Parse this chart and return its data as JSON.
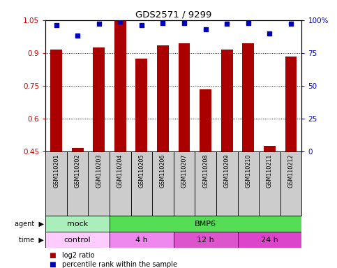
{
  "title": "GDS2571 / 9299",
  "samples": [
    "GSM110201",
    "GSM110202",
    "GSM110203",
    "GSM110204",
    "GSM110205",
    "GSM110206",
    "GSM110207",
    "GSM110208",
    "GSM110209",
    "GSM110210",
    "GSM110211",
    "GSM110212"
  ],
  "log2_ratio": [
    0.915,
    0.465,
    0.925,
    1.045,
    0.875,
    0.935,
    0.945,
    0.735,
    0.915,
    0.945,
    0.475,
    0.885
  ],
  "percentile_rank": [
    96,
    88,
    97,
    99,
    96,
    98,
    98,
    93,
    97,
    98,
    90,
    97
  ],
  "bar_bottom": 0.45,
  "ylim_left": [
    0.45,
    1.05
  ],
  "ylim_right": [
    0,
    100
  ],
  "yticks_left": [
    0.45,
    0.6,
    0.75,
    0.9,
    1.05
  ],
  "yticks_right": [
    0,
    25,
    50,
    75,
    100
  ],
  "ytick_labels_left": [
    "0.45",
    "0.6",
    "0.75",
    "0.9",
    "1.05"
  ],
  "ytick_labels_right": [
    "0",
    "25",
    "50",
    "75",
    "100%"
  ],
  "bar_color": "#aa0000",
  "dot_color": "#0000bb",
  "agent_labels": [
    {
      "text": "mock",
      "start": 0,
      "end": 3,
      "color": "#aaeebb"
    },
    {
      "text": "BMP6",
      "start": 3,
      "end": 12,
      "color": "#55dd55"
    }
  ],
  "time_labels": [
    {
      "text": "control",
      "start": 0,
      "end": 3,
      "color": "#ffccff"
    },
    {
      "text": "4 h",
      "start": 3,
      "end": 6,
      "color": "#ee88ee"
    },
    {
      "text": "12 h",
      "start": 6,
      "end": 9,
      "color": "#dd55cc"
    },
    {
      "text": "24 h",
      "start": 9,
      "end": 12,
      "color": "#dd44cc"
    }
  ],
  "grid_yticks": [
    0.9,
    0.75,
    0.6
  ],
  "background_color": "#ffffff",
  "tick_label_color_left": "#cc0000",
  "tick_label_color_right": "#0000cc",
  "legend_red_text": "log2 ratio",
  "legend_blue_text": "percentile rank within the sample",
  "label_bg_color": "#cccccc",
  "n_samples": 12
}
